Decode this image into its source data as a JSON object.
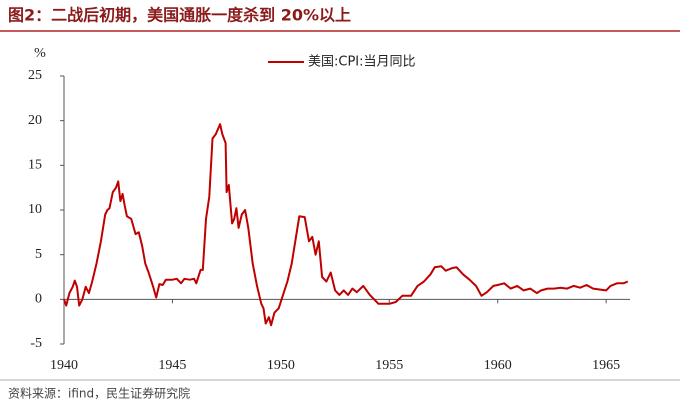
{
  "chart_data": {
    "type": "line",
    "title": "图2：二战后初期，美国通胀一度杀到 20%以上",
    "y_unit": "%",
    "source": "资料来源：ifind，民生证券研究院",
    "x": [
      1940.0,
      1940.1,
      1940.25,
      1940.4,
      1940.5,
      1940.6,
      1940.7,
      1940.85,
      1941.0,
      1941.15,
      1941.3,
      1941.5,
      1941.7,
      1941.9,
      1942.0,
      1942.1,
      1942.25,
      1942.4,
      1942.5,
      1942.6,
      1942.7,
      1942.8,
      1942.9,
      1943.1,
      1943.3,
      1943.45,
      1943.6,
      1943.75,
      1943.9,
      1944.1,
      1944.25,
      1944.4,
      1944.55,
      1944.7,
      1945.0,
      1945.2,
      1945.4,
      1945.55,
      1945.8,
      1946.0,
      1946.1,
      1946.3,
      1946.4,
      1946.55,
      1946.7,
      1946.85,
      1947.0,
      1947.2,
      1947.3,
      1947.45,
      1947.5,
      1947.6,
      1947.75,
      1947.85,
      1947.95,
      1948.05,
      1948.2,
      1948.35,
      1948.5,
      1948.7,
      1948.9,
      1949.1,
      1949.2,
      1949.3,
      1949.45,
      1949.55,
      1949.7,
      1949.9,
      1950.1,
      1950.3,
      1950.5,
      1950.7,
      1950.85,
      1951.1,
      1951.3,
      1951.45,
      1951.6,
      1951.75,
      1951.9,
      1952.1,
      1952.3,
      1952.5,
      1952.7,
      1952.9,
      1953.1,
      1953.3,
      1953.5,
      1953.8,
      1954.1,
      1954.3,
      1954.5,
      1954.7,
      1955.0,
      1955.3,
      1955.6,
      1956.0,
      1956.3,
      1956.6,
      1956.9,
      1957.1,
      1957.4,
      1957.6,
      1957.9,
      1958.1,
      1958.4,
      1958.7,
      1959.0,
      1959.25,
      1959.5,
      1959.8,
      1960.0,
      1960.3,
      1960.6,
      1960.9,
      1961.2,
      1961.5,
      1961.8,
      1962.0,
      1962.3,
      1962.6,
      1962.9,
      1963.2,
      1963.5,
      1963.8,
      1964.1,
      1964.4,
      1964.7,
      1965.0,
      1965.2,
      1965.5,
      1965.8,
      1966.0
    ],
    "series": [
      {
        "name": "美国:CPI:当月同比",
        "color": "#c00000",
        "values": [
          0.0,
          -0.7,
          0.7,
          1.4,
          2.1,
          1.4,
          -0.7,
          0.0,
          1.4,
          0.7,
          2.0,
          4.0,
          6.5,
          9.5,
          10.0,
          10.2,
          12.0,
          12.5,
          13.2,
          11.0,
          11.8,
          10.5,
          9.3,
          9.0,
          7.3,
          7.5,
          6.0,
          4.0,
          3.0,
          1.5,
          0.2,
          1.7,
          1.6,
          2.2,
          2.2,
          2.3,
          1.8,
          2.3,
          2.2,
          2.3,
          1.8,
          3.3,
          3.3,
          9.0,
          11.5,
          18.0,
          18.5,
          19.6,
          18.5,
          17.5,
          12.0,
          12.8,
          8.5,
          9.0,
          10.2,
          8.0,
          9.5,
          10.0,
          8.0,
          4.0,
          1.5,
          -0.5,
          -1.0,
          -2.7,
          -2.0,
          -2.9,
          -1.5,
          -1.0,
          0.5,
          2.0,
          4.0,
          7.0,
          9.3,
          9.2,
          6.5,
          7.0,
          5.0,
          6.5,
          2.5,
          2.0,
          3.0,
          1.0,
          0.5,
          1.0,
          0.5,
          1.2,
          0.8,
          1.5,
          0.5,
          0.0,
          -0.5,
          -0.5,
          -0.5,
          -0.3,
          0.4,
          0.4,
          1.5,
          2.0,
          2.8,
          3.6,
          3.7,
          3.2,
          3.5,
          3.6,
          2.8,
          2.2,
          1.5,
          0.4,
          0.8,
          1.5,
          1.6,
          1.8,
          1.2,
          1.5,
          1.0,
          1.2,
          0.7,
          1.0,
          1.2,
          1.2,
          1.3,
          1.2,
          1.5,
          1.3,
          1.6,
          1.2,
          1.1,
          1.0,
          1.5,
          1.8,
          1.8,
          2.0
        ]
      }
    ],
    "xlim": [
      1940,
      1966.1
    ],
    "xticks": [
      1940,
      1945,
      1950,
      1955,
      1960,
      1965
    ],
    "ylim": [
      -5,
      25
    ],
    "yticks": [
      -5,
      0,
      5,
      10,
      15,
      20,
      25
    ],
    "grid": false,
    "legend": "top"
  }
}
